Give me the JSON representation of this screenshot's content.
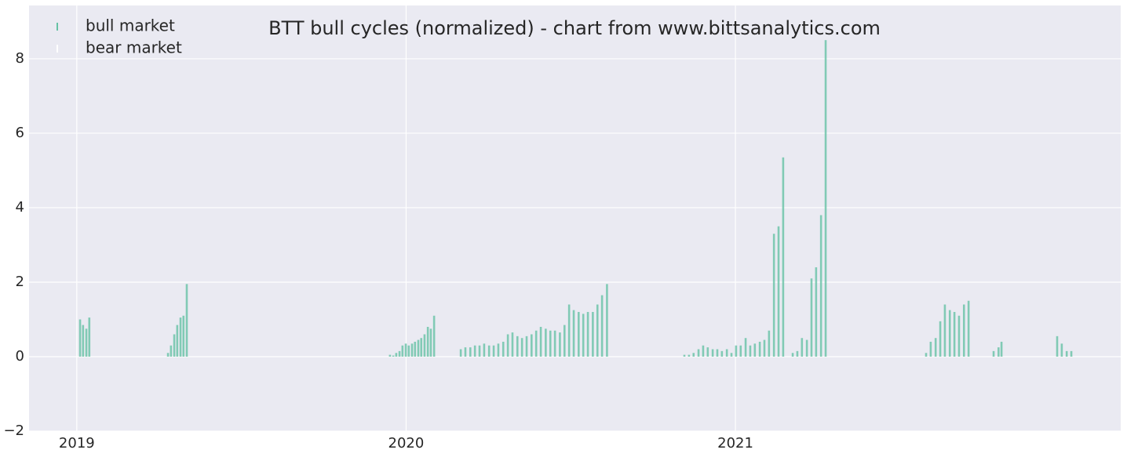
{
  "chart_data": {
    "type": "bar",
    "title": "BTT bull cycles (normalized)  - chart from www.bittsanalytics.com",
    "xlim": [
      2018.855,
      2022.17
    ],
    "xticks": [
      2019,
      2020,
      2021
    ],
    "ylim": [
      -2,
      9.43
    ],
    "yticks": [
      {
        "value": -2,
        "label": "−2"
      },
      0,
      2,
      4,
      6,
      8
    ],
    "grid": true,
    "legend": "upper-left",
    "series": [
      {
        "name": "bull market",
        "color": "#66c2a5",
        "x": [
          2019.01,
          2019.019,
          2019.029,
          2019.038,
          2019.277,
          2019.286,
          2019.296,
          2019.305,
          2019.315,
          2019.324,
          2019.334,
          2019.951,
          2019.961,
          2019.97,
          2019.98,
          2019.989,
          2019.999,
          2020.008,
          2020.018,
          2020.027,
          2020.037,
          2020.046,
          2020.056,
          2020.066,
          2020.075,
          2020.085,
          2020.166,
          2020.18,
          2020.195,
          2020.209,
          2020.223,
          2020.237,
          2020.252,
          2020.266,
          2020.28,
          2020.295,
          2020.309,
          2020.323,
          2020.338,
          2020.352,
          2020.366,
          2020.381,
          2020.395,
          2020.409,
          2020.424,
          2020.438,
          2020.452,
          2020.467,
          2020.481,
          2020.495,
          2020.509,
          2020.524,
          2020.538,
          2020.552,
          2020.567,
          2020.581,
          2020.595,
          2020.61,
          2020.845,
          2020.859,
          2020.873,
          2020.888,
          2020.902,
          2020.916,
          2020.931,
          2020.945,
          2020.959,
          2020.974,
          2020.988,
          2021.002,
          2021.016,
          2021.031,
          2021.045,
          2021.059,
          2021.074,
          2021.088,
          2021.102,
          2021.117,
          2021.131,
          2021.145,
          2021.174,
          2021.188,
          2021.202,
          2021.217,
          2021.231,
          2021.245,
          2021.26,
          2021.274,
          2021.579,
          2021.593,
          2021.608,
          2021.622,
          2021.636,
          2021.651,
          2021.665,
          2021.679,
          2021.694,
          2021.708,
          2021.784,
          2021.799,
          2021.808,
          2021.977,
          2021.991,
          2022.006,
          2022.02
        ],
        "values": [
          1.0,
          0.85,
          0.75,
          1.05,
          0.1,
          0.3,
          0.6,
          0.85,
          1.05,
          1.1,
          1.95,
          0.05,
          0.03,
          0.1,
          0.15,
          0.3,
          0.35,
          0.3,
          0.35,
          0.4,
          0.45,
          0.5,
          0.6,
          0.8,
          0.75,
          1.1,
          0.2,
          0.25,
          0.25,
          0.3,
          0.3,
          0.35,
          0.3,
          0.3,
          0.35,
          0.4,
          0.6,
          0.65,
          0.55,
          0.5,
          0.55,
          0.6,
          0.7,
          0.8,
          0.75,
          0.7,
          0.7,
          0.65,
          0.85,
          1.4,
          1.25,
          1.2,
          1.15,
          1.2,
          1.2,
          1.4,
          1.65,
          1.95,
          0.05,
          0.05,
          0.1,
          0.2,
          0.3,
          0.25,
          0.2,
          0.2,
          0.15,
          0.2,
          0.1,
          0.3,
          0.3,
          0.5,
          0.3,
          0.35,
          0.4,
          0.45,
          0.7,
          3.3,
          3.5,
          5.35,
          0.1,
          0.15,
          0.5,
          0.45,
          2.1,
          2.4,
          3.8,
          8.5,
          0.1,
          0.4,
          0.5,
          0.95,
          1.4,
          1.25,
          1.2,
          1.1,
          1.4,
          1.5,
          0.15,
          0.25,
          0.4,
          0.55,
          0.35,
          0.15,
          0.15
        ]
      },
      {
        "name": "bear market",
        "color": "#ffffff",
        "x": [],
        "values": []
      }
    ]
  }
}
